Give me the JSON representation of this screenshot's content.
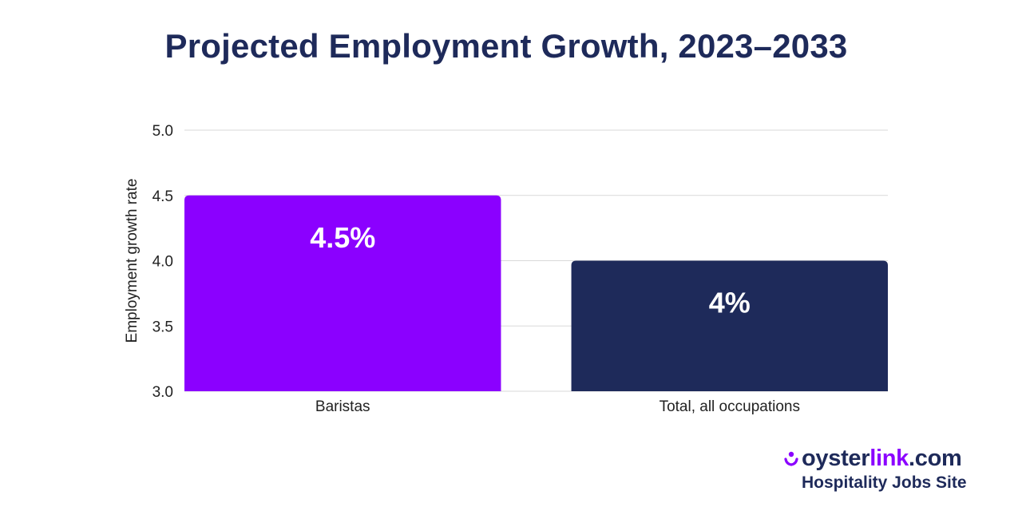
{
  "chart_data": {
    "type": "bar",
    "title": "Projected Employment Growth, 2023–2033",
    "xlabel": "",
    "ylabel": "Employment growth rate",
    "categories": [
      "Baristas",
      "Total, all occupations"
    ],
    "values": [
      4.5,
      4.0
    ],
    "data_labels": [
      "4.5%",
      "4%"
    ],
    "bar_colors": [
      "#8b00ff",
      "#1e2a5a"
    ],
    "ylim": [
      3.0,
      5.0
    ],
    "yticks": [
      3.0,
      3.5,
      4.0,
      4.5,
      5.0
    ],
    "ytick_labels": [
      "3.0",
      "3.5",
      "4.0",
      "4.5",
      "5.0"
    ],
    "grid": true,
    "legend": "none"
  },
  "brand": {
    "name_part1": "oyster",
    "name_part2": "link",
    "name_part3": ".com",
    "tagline": "Hospitality Jobs Site",
    "icon": "oyster-link-logo-icon",
    "primary_color": "#1e2a5a",
    "accent_color": "#8b00ff"
  },
  "colors": {
    "title": "#1e2a5a",
    "grid": "#d9d9d9",
    "axis_text": "#222222"
  }
}
